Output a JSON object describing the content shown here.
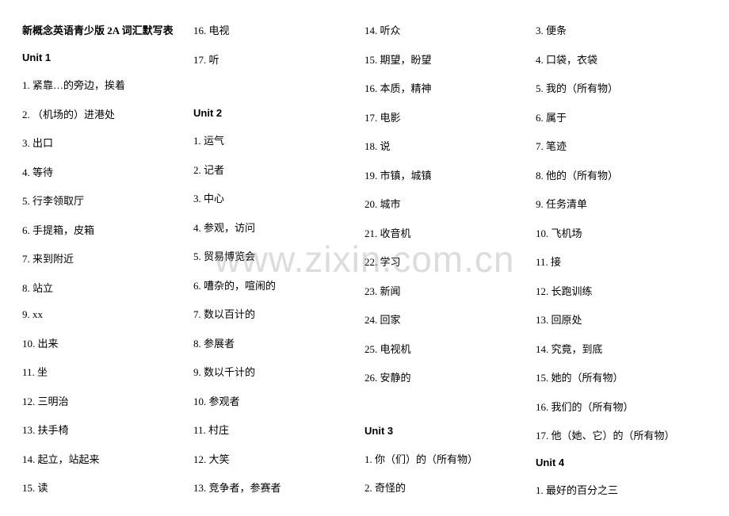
{
  "doc": {
    "title": "新概念英语青少版 2A 词汇默写表",
    "watermark": "www.zixin.com.cn",
    "background_color": "#ffffff",
    "text_color": "#000000",
    "watermark_color": "rgba(128,128,128,0.28)",
    "font_size_body": 13,
    "font_size_watermark": 46,
    "columns": 4
  },
  "col1": {
    "title": "新概念英语青少版 2A 词汇默写表",
    "unit": "Unit 1",
    "items": [
      "1. 紧靠…的旁边，挨着",
      "2. （机场的）进港处",
      "3. 出口",
      "4. 等待",
      "5. 行李领取厅",
      "6. 手提箱，皮箱",
      "7. 来到附近",
      "8. 站立",
      "9. xx",
      "10. 出来",
      "11. 坐",
      "12. 三明治",
      "13. 扶手椅",
      "14. 起立，站起来",
      "15. 读"
    ]
  },
  "col2": {
    "top_items": [
      "16. 电视",
      "17. 听"
    ],
    "unit": "Unit 2",
    "items": [
      "1. 运气",
      "2. 记者",
      "3. 中心",
      "4. 参观，访问",
      "5. 贸易博览会",
      "6. 嘈杂的，喧闹的",
      "7. 数以百计的",
      "8. 参展者",
      "9. 数以千计的",
      "10. 参观者",
      "11. 村庄",
      "12. 大笑",
      "13. 竞争者，参赛者"
    ]
  },
  "col3": {
    "top_items": [
      "14. 听众",
      "15. 期望，盼望",
      "16. 本质，精神",
      "17. 电影",
      "18. 说",
      "19. 市镇，城镇",
      "20. 城市",
      "21. 收音机",
      "22. 学习",
      "23. 新闻",
      "24. 回家",
      "25. 电视机",
      "26. 安静的"
    ],
    "unit": "Unit 3",
    "items": [
      "1. 你（们）的（所有物）",
      "2. 奇怪的"
    ]
  },
  "col4": {
    "top_items": [
      "3. 便条",
      "4. 口袋，衣袋",
      "5. 我的（所有物）",
      "6. 属于",
      "7. 笔迹",
      "8. 他的（所有物）",
      "9. 任务清单",
      "10. 飞机场",
      "11. 接",
      "12. 长跑训练",
      "13. 回原处",
      "14. 究竟，到底",
      "15. 她的（所有物）",
      "16. 我们的（所有物）",
      "17. 他（她、它）的（所有物）"
    ],
    "unit": "Unit 4",
    "items": [
      "1. 最好的百分之三"
    ]
  }
}
